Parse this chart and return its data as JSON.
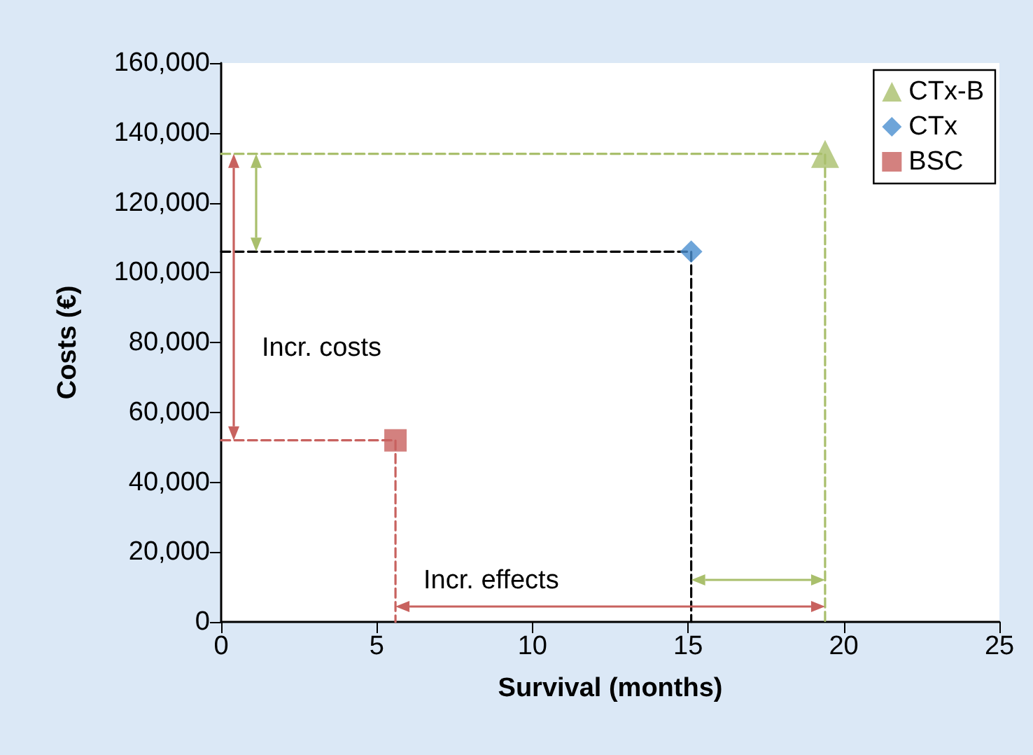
{
  "chart_data": {
    "type": "scatter",
    "xlabel": "Survival (months)",
    "ylabel": "Costs (€)",
    "xlim": [
      0,
      25
    ],
    "xticks": [
      0,
      5,
      10,
      15,
      20,
      25
    ],
    "ylim": [
      0,
      160000
    ],
    "yticks": [
      0,
      {
        "value": 20000,
        "label": "20,000"
      },
      {
        "value": 40000,
        "label": "40,000"
      },
      {
        "value": 60000,
        "label": "60,000"
      },
      {
        "value": 80000,
        "label": "80,000"
      },
      {
        "value": 100000,
        "label": "100,000"
      },
      {
        "value": 120000,
        "label": "120,000"
      },
      {
        "value": 140000,
        "label": "140,000"
      },
      {
        "value": 160000,
        "label": "160,000"
      }
    ],
    "grid": false,
    "legend": "top right",
    "annotations": [
      "Incr. costs",
      "Incr. effects"
    ],
    "series": [
      {
        "name": "CTx-B",
        "color": "#a9bf6c",
        "marker": "triangle",
        "x": [
          19.4
        ],
        "values": [
          134000
        ]
      },
      {
        "name": "CTx",
        "color": "#4a8fd0",
        "marker": "diamond",
        "x": [
          15.1
        ],
        "values": [
          106000
        ]
      },
      {
        "name": "BSC",
        "color": "#c8625f",
        "marker": "square",
        "x": [
          5.6
        ],
        "values": [
          52000
        ]
      },
      {
        "type": "line",
        "color": "#a9bf6c",
        "line_style": "dashed",
        "marker": "none",
        "x": [
          0,
          19.4,
          19.4
        ],
        "values": [
          134000,
          134000,
          0
        ]
      },
      {
        "type": "line",
        "color": "#000000",
        "line_style": "dashed",
        "marker": "none",
        "x": [
          0,
          15.1,
          15.1
        ],
        "values": [
          106000,
          106000,
          0
        ]
      },
      {
        "type": "line",
        "color": "#c8625f",
        "line_style": "dashed",
        "marker": "none",
        "x": [
          0,
          5.6,
          5.6
        ],
        "values": [
          52000,
          52000,
          0
        ]
      }
    ]
  }
}
